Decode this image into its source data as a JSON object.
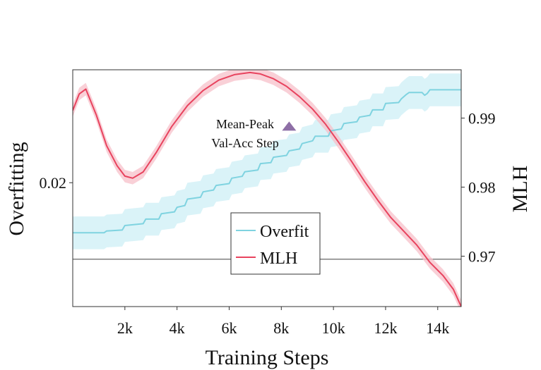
{
  "chart_data": {
    "type": "line",
    "xlabel": "Training Steps",
    "ylabel_left": "Overfitting",
    "ylabel_right": "MLH",
    "x_ticks": [
      2000,
      4000,
      6000,
      8000,
      10000,
      12000,
      14000
    ],
    "x_tick_labels": [
      "2k",
      "4k",
      "6k",
      "8k",
      "10k",
      "12k",
      "14k"
    ],
    "xlim": [
      0,
      14900
    ],
    "ylim_left": [
      0.0064,
      0.0324
    ],
    "y_left_ticks": [
      0.02
    ],
    "y_left_tick_labels": [
      "0.02"
    ],
    "ylim_right": [
      0.9627,
      0.997
    ],
    "y_right_ticks": [
      0.97,
      0.98,
      0.99
    ],
    "y_right_tick_labels": [
      "0.97",
      "0.98",
      "0.99"
    ],
    "reference_line_left": 0.0116,
    "legend_position": "lower-center",
    "colors": {
      "overfit": "#7fd3e0",
      "overfit_band": "#cdeff6",
      "mlh": "#e8435e",
      "mlh_band": "#f7c0ca",
      "marker": "#8e6fa6",
      "reference": "#555555"
    },
    "series": [
      {
        "name": "Overfit",
        "axis": "left",
        "x": [
          0,
          1200,
          1300,
          1900,
          2000,
          2700,
          2800,
          3300,
          3400,
          3900,
          4000,
          4300,
          4400,
          4900,
          5000,
          5400,
          5500,
          6000,
          6100,
          6500,
          6600,
          7100,
          7200,
          7600,
          7700,
          8200,
          8300,
          8700,
          8800,
          9200,
          9300,
          9800,
          9900,
          10300,
          10400,
          10900,
          11000,
          11400,
          11500,
          11900,
          12000,
          12500,
          12600,
          12800,
          12900,
          13400,
          13500,
          13600,
          13700,
          14900
        ],
        "y": [
          0.0145,
          0.0145,
          0.0147,
          0.0148,
          0.0153,
          0.0155,
          0.016,
          0.016,
          0.0166,
          0.0168,
          0.0173,
          0.0175,
          0.0182,
          0.0184,
          0.019,
          0.0192,
          0.0197,
          0.0199,
          0.0205,
          0.0207,
          0.0212,
          0.0214,
          0.0221,
          0.0222,
          0.0228,
          0.023,
          0.0235,
          0.0237,
          0.0243,
          0.0246,
          0.0251,
          0.0251,
          0.0257,
          0.0259,
          0.0265,
          0.0267,
          0.0272,
          0.0274,
          0.028,
          0.028,
          0.0287,
          0.0288,
          0.0292,
          0.0297,
          0.0299,
          0.0299,
          0.0296,
          0.0298,
          0.0302,
          0.0302
        ],
        "band": 0.0018
      },
      {
        "name": "MLH",
        "axis": "right",
        "x": [
          0,
          250,
          500,
          900,
          1300,
          1700,
          2000,
          2300,
          2700,
          3200,
          3800,
          4400,
          5000,
          5600,
          6200,
          6800,
          7200,
          7700,
          8200,
          8700,
          9200,
          9700,
          10200,
          10700,
          11200,
          11700,
          12200,
          12700,
          13200,
          13700,
          14200,
          14600,
          14900
        ],
        "y": [
          0.9911,
          0.9935,
          0.9942,
          0.9905,
          0.986,
          0.9831,
          0.9816,
          0.9813,
          0.9822,
          0.985,
          0.9888,
          0.9918,
          0.994,
          0.9955,
          0.9963,
          0.9966,
          0.9964,
          0.9957,
          0.9946,
          0.9931,
          0.9913,
          0.9891,
          0.9865,
          0.9837,
          0.9808,
          0.9781,
          0.9756,
          0.9736,
          0.9716,
          0.9691,
          0.9672,
          0.9652,
          0.9627
        ],
        "band": 0.0009
      }
    ],
    "annotations": [
      {
        "text_lines": [
          "Mean-Peak",
          "Val-Acc Step"
        ],
        "marker": "triangle",
        "x": 8300,
        "y_right": 0.9888
      }
    ]
  }
}
